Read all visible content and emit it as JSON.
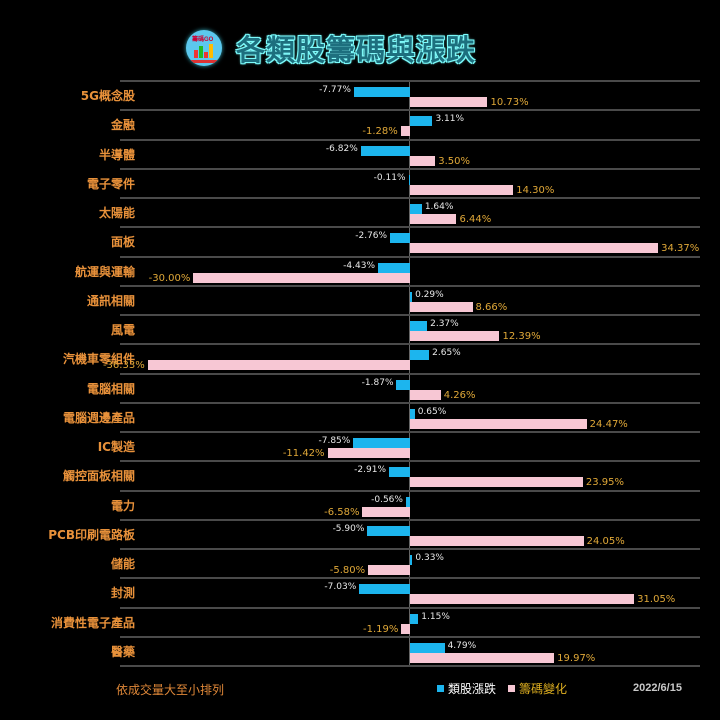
{
  "header": {
    "title": "各類股籌碼與漲跌",
    "logo_icon": "stock-chart-logo-icon"
  },
  "footer": {
    "note": "依成交量大至小排列",
    "legend": [
      {
        "label": "類股漲跌",
        "color": "#1cb5ee"
      },
      {
        "label": "籌碼變化",
        "color": "#f7c7d4"
      }
    ],
    "date": "2022/6/15"
  },
  "colors": {
    "price_change": "#1cb5ee",
    "chip_change": "#f7c7d4",
    "category_label": "#e8913a",
    "chip_label": "#e0a838",
    "background": "#000000"
  },
  "chart_data": {
    "type": "bar",
    "orientation": "horizontal",
    "title": "各類股籌碼與漲跌",
    "subtitle": "依成交量大至小排列",
    "date": "2022/6/15",
    "xlabel": "",
    "ylabel": "",
    "xlim": [
      -37,
      36
    ],
    "grid": true,
    "legend_position": "bottom",
    "categories": [
      "5G概念股",
      "金融",
      "半導體",
      "電子零件",
      "太陽能",
      "面板",
      "航運與運輸",
      "通訊相關",
      "風電",
      "汽機車零組件",
      "電腦相關",
      "電腦週邊產品",
      "IC製造",
      "觸控面板相關",
      "電力",
      "PCB印刷電路板",
      "儲能",
      "封測",
      "消費性電子產品",
      "醫藥"
    ],
    "series": [
      {
        "name": "類股漲跌",
        "unit": "%",
        "values": [
          -7.77,
          3.11,
          -6.82,
          -0.11,
          1.64,
          -2.76,
          -4.43,
          0.29,
          2.37,
          2.65,
          -1.87,
          0.65,
          -7.85,
          -2.91,
          -0.56,
          -5.9,
          0.33,
          -7.03,
          1.15,
          4.79
        ],
        "labels": [
          "-7.77%",
          "3.11%",
          "-6.82%",
          "-0.11%",
          "1.64%",
          "-2.76%",
          "-4.43%",
          "0.29%",
          "2.37%",
          "2.65%",
          "-1.87%",
          "0.65%",
          "-7.85%",
          "-2.91%",
          "-0.56%",
          "-5.90%",
          "0.33%",
          "-7.03%",
          "1.15%",
          "4.79%"
        ]
      },
      {
        "name": "籌碼變化",
        "unit": "%",
        "values": [
          10.73,
          -1.28,
          3.5,
          14.3,
          6.44,
          34.37,
          -30.0,
          8.66,
          12.39,
          -36.33,
          4.26,
          24.47,
          -11.42,
          23.95,
          -6.58,
          24.05,
          -5.8,
          31.05,
          -1.19,
          19.97
        ],
        "labels": [
          "10.73%",
          "-1.28%",
          "3.50%",
          "14.30%",
          "6.44%",
          "34.37%",
          "-30.00%",
          "8.66%",
          "12.39%",
          "-36.33%",
          "4.26%",
          "24.47%",
          "-11.42%",
          "23.95%",
          "-6.58%",
          "24.05%",
          "-5.80%",
          "31.05%",
          "-1.19%",
          "19.97%"
        ]
      }
    ]
  }
}
